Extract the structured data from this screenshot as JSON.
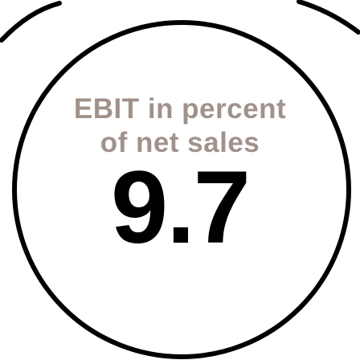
{
  "kpi": {
    "label_line_1": "EBIT in percent",
    "label_line_2": "of net sales",
    "value": "9.7"
  },
  "colors": {
    "label": "#a0928a",
    "value": "#000000",
    "ring": "#000000",
    "background": "#ffffff"
  }
}
